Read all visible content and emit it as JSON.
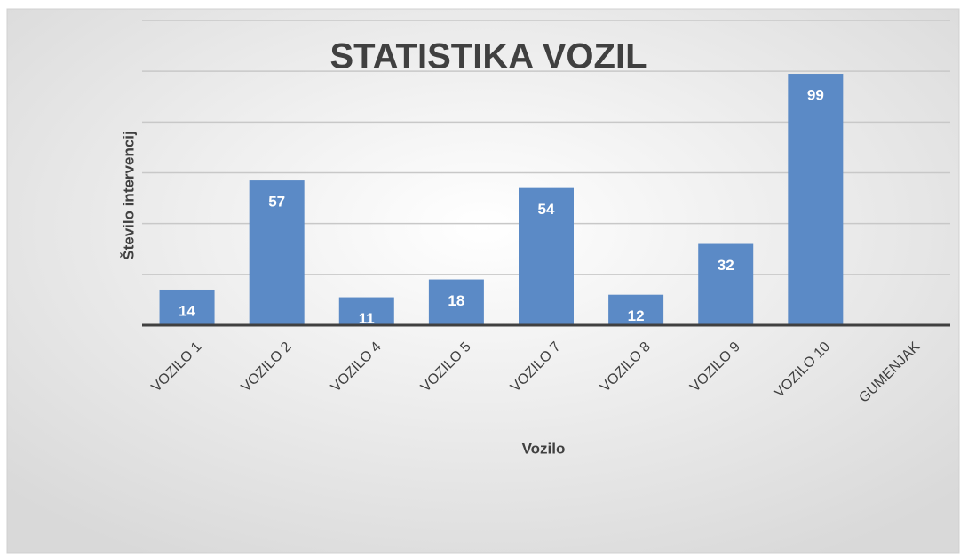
{
  "chart_data": {
    "type": "bar",
    "title": "STATISTIKA VOZIL",
    "x_label": "Vozilo",
    "y_label": "Število intervencij",
    "categories": [
      "VOZILO 1",
      "VOZILO 2",
      "VOZILO 4",
      "VOZILO 5",
      "VOZILO 7",
      "VOZILO 8",
      "VOZILO 9",
      "VOZILO 10",
      "GUMENJAK"
    ],
    "values": [
      14,
      57,
      11,
      18,
      54,
      12,
      32,
      99,
      null
    ],
    "color": "#5b8ac6",
    "ylim": [
      0,
      120
    ],
    "yticks": [
      0,
      20,
      40,
      60,
      80,
      100,
      120
    ],
    "grid": true
  }
}
